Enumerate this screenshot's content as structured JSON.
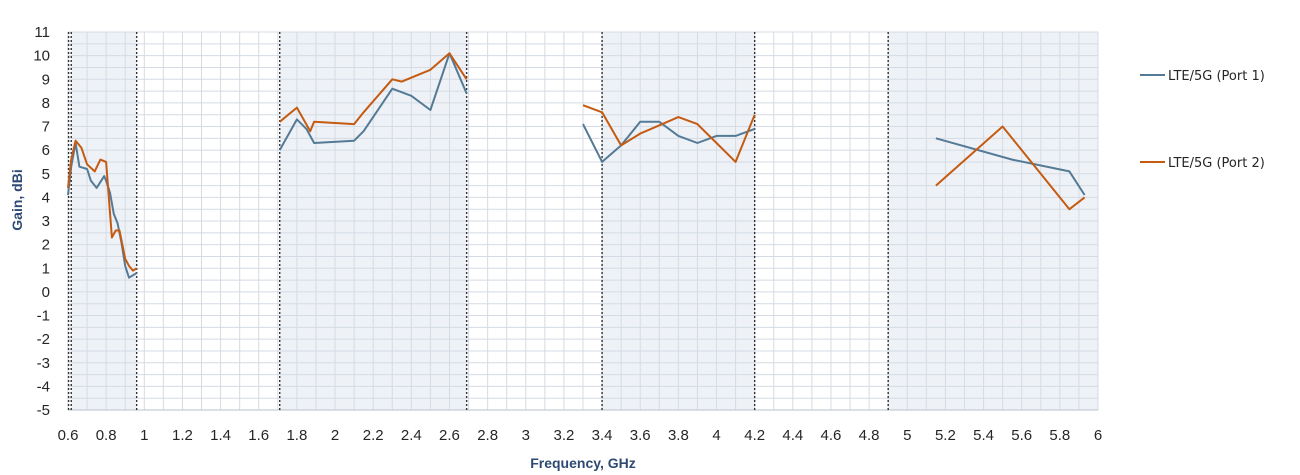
{
  "chart_data": {
    "type": "line",
    "title": "",
    "xlabel": "Frequency, GHz",
    "ylabel": "Gain, dBi",
    "xlim": [
      0.6,
      6
    ],
    "ylim": [
      -5,
      11
    ],
    "x_ticks": [
      "0.6",
      "0.8",
      "1",
      "1.2",
      "1.4",
      "1.6",
      "1.8",
      "2",
      "2.2",
      "2.4",
      "2.6",
      "2.8",
      "3",
      "3.2",
      "3.4",
      "3.6",
      "3.8",
      "4",
      "4.2",
      "4.4",
      "4.6",
      "4.8",
      "5",
      "5.2",
      "5.4",
      "5.6",
      "5.8",
      "6"
    ],
    "y_ticks": [
      "-5",
      "-4",
      "-3",
      "-2",
      "-1",
      "0",
      "1",
      "2",
      "3",
      "4",
      "5",
      "6",
      "7",
      "8",
      "9",
      "10",
      "11"
    ],
    "grid": true,
    "legend_position": "right",
    "shaded_bands": [
      {
        "from": 0.617,
        "to": 0.96
      },
      {
        "from": 1.71,
        "to": 2.69
      },
      {
        "from": 3.4,
        "to": 4.2
      },
      {
        "from": 4.9,
        "to": 6.0
      }
    ],
    "series": [
      {
        "name": "LTE/5G (Port 1)",
        "color": "#557a95",
        "segments": [
          [
            [
              0.6,
              4.1
            ],
            [
              0.617,
              5.3
            ],
            [
              0.64,
              6.3
            ],
            [
              0.66,
              5.3
            ],
            [
              0.7,
              5.2
            ],
            [
              0.72,
              4.7
            ],
            [
              0.75,
              4.4
            ],
            [
              0.79,
              4.9
            ],
            [
              0.8,
              4.7
            ],
            [
              0.82,
              4.2
            ],
            [
              0.84,
              3.3
            ],
            [
              0.86,
              2.9
            ],
            [
              0.88,
              2.1
            ],
            [
              0.9,
              1.1
            ],
            [
              0.92,
              0.6
            ],
            [
              0.94,
              0.7
            ],
            [
              0.96,
              0.8
            ]
          ],
          [
            [
              1.71,
              6.0
            ],
            [
              1.8,
              7.3
            ],
            [
              1.85,
              6.9
            ],
            [
              1.89,
              6.3
            ],
            [
              2.1,
              6.4
            ],
            [
              2.15,
              6.8
            ],
            [
              2.3,
              8.6
            ],
            [
              2.4,
              8.3
            ],
            [
              2.5,
              7.7
            ],
            [
              2.6,
              10.1
            ],
            [
              2.69,
              8.4
            ]
          ],
          [
            [
              3.3,
              7.1
            ],
            [
              3.4,
              5.5
            ],
            [
              3.5,
              6.2
            ],
            [
              3.6,
              7.2
            ],
            [
              3.7,
              7.2
            ],
            [
              3.8,
              6.6
            ],
            [
              3.9,
              6.3
            ],
            [
              4.0,
              6.6
            ],
            [
              4.1,
              6.6
            ],
            [
              4.2,
              6.9
            ]
          ],
          [
            [
              5.15,
              6.5
            ],
            [
              5.55,
              5.6
            ],
            [
              5.85,
              5.1
            ],
            [
              5.93,
              4.1
            ]
          ]
        ]
      },
      {
        "name": "LTE/5G (Port 2)",
        "color": "#c55a11",
        "segments": [
          [
            [
              0.6,
              4.4
            ],
            [
              0.617,
              5.6
            ],
            [
              0.64,
              6.4
            ],
            [
              0.67,
              6.1
            ],
            [
              0.7,
              5.4
            ],
            [
              0.74,
              5.1
            ],
            [
              0.77,
              5.6
            ],
            [
              0.8,
              5.5
            ],
            [
              0.83,
              2.3
            ],
            [
              0.85,
              2.6
            ],
            [
              0.87,
              2.6
            ],
            [
              0.9,
              1.4
            ],
            [
              0.92,
              1.1
            ],
            [
              0.94,
              0.9
            ],
            [
              0.96,
              1.0
            ]
          ],
          [
            [
              1.71,
              7.2
            ],
            [
              1.8,
              7.8
            ],
            [
              1.87,
              6.8
            ],
            [
              1.89,
              7.2
            ],
            [
              2.1,
              7.1
            ],
            [
              2.15,
              7.6
            ],
            [
              2.3,
              9.0
            ],
            [
              2.35,
              8.9
            ],
            [
              2.5,
              9.4
            ],
            [
              2.6,
              10.1
            ],
            [
              2.69,
              9.0
            ]
          ],
          [
            [
              3.3,
              7.9
            ],
            [
              3.4,
              7.6
            ],
            [
              3.5,
              6.2
            ],
            [
              3.6,
              6.7
            ],
            [
              3.8,
              7.4
            ],
            [
              3.9,
              7.1
            ],
            [
              4.0,
              6.3
            ],
            [
              4.1,
              5.5
            ],
            [
              4.2,
              7.5
            ]
          ],
          [
            [
              5.15,
              4.5
            ],
            [
              5.5,
              7.0
            ],
            [
              5.85,
              3.5
            ],
            [
              5.93,
              4.0
            ]
          ]
        ]
      }
    ]
  },
  "legend": {
    "port1_label": "LTE/5G (Port 1)",
    "port2_label": "LTE/5G (Port 2)"
  }
}
